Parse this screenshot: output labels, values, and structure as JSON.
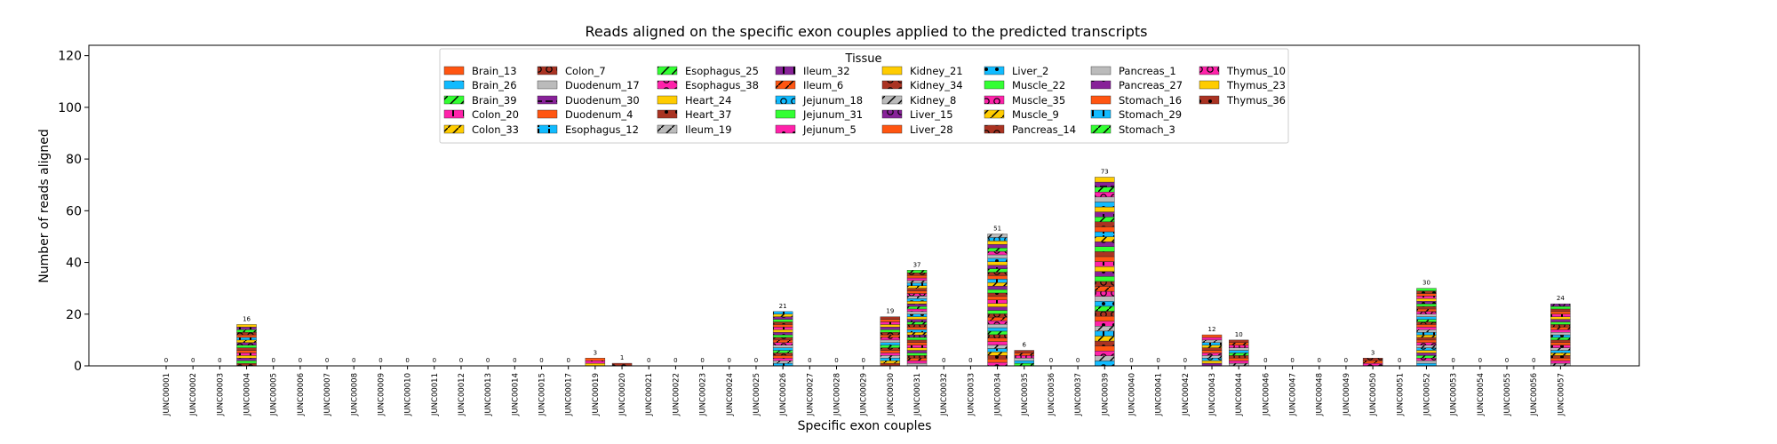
{
  "chart_data": {
    "type": "bar",
    "stacked": true,
    "title": "Reads aligned on the specific exon couples applied to the predicted transcripts",
    "xlabel": "Specific exon couples",
    "ylabel": "Number of reads aligned",
    "ylim": [
      0,
      124
    ],
    "yticks": [
      0,
      20,
      40,
      60,
      80,
      100,
      120
    ],
    "grid": false,
    "legend": {
      "title": "Tissue",
      "placement": "top-center",
      "columns": 8
    },
    "categories": [
      "JUNC00001",
      "JUNC00002",
      "JUNC00003",
      "JUNC00004",
      "JUNC00005",
      "JUNC00006",
      "JUNC00007",
      "JUNC00008",
      "JUNC00009",
      "JUNC00010",
      "JUNC00011",
      "JUNC00012",
      "JUNC00013",
      "JUNC00014",
      "JUNC00015",
      "JUNC00017",
      "JUNC00019",
      "JUNC00020",
      "JUNC00021",
      "JUNC00022",
      "JUNC00023",
      "JUNC00024",
      "JUNC00025",
      "JUNC00026",
      "JUNC00027",
      "JUNC00028",
      "JUNC00029",
      "JUNC00030",
      "JUNC00031",
      "JUNC00032",
      "JUNC00033",
      "JUNC00034",
      "JUNC00035",
      "JUNC00036",
      "JUNC00037",
      "JUNC00039",
      "JUNC00040",
      "JUNC00041",
      "JUNC00042",
      "JUNC00043",
      "JUNC00044",
      "JUNC00046",
      "JUNC00047",
      "JUNC00048",
      "JUNC00049",
      "JUNC00050",
      "JUNC00051",
      "JUNC00052",
      "JUNC00053",
      "JUNC00054",
      "JUNC00055",
      "JUNC00056",
      "JUNC00057"
    ],
    "totals": [
      0,
      0,
      0,
      16,
      0,
      0,
      0,
      0,
      0,
      0,
      0,
      0,
      0,
      0,
      0,
      0,
      3,
      1,
      0,
      0,
      0,
      0,
      0,
      21,
      0,
      0,
      0,
      19,
      37,
      0,
      0,
      51,
      6,
      0,
      0,
      73,
      0,
      0,
      0,
      12,
      10,
      0,
      0,
      0,
      0,
      3,
      0,
      30,
      0,
      0,
      0,
      0,
      24
    ],
    "series": [
      {
        "name": "Brain_13",
        "color": "#FF5511",
        "pattern": "none"
      },
      {
        "name": "Brain_26",
        "color": "#11BBFF",
        "pattern": "dot"
      },
      {
        "name": "Brain_39",
        "color": "#33FF33",
        "pattern": "slash"
      },
      {
        "name": "Colon_20",
        "color": "#FF22AA",
        "pattern": "bar"
      },
      {
        "name": "Colon_33",
        "color": "#FFCC00",
        "pattern": "slash"
      },
      {
        "name": "Colon_7",
        "color": "#AA3322",
        "pattern": "ring"
      },
      {
        "name": "Duodenum_17",
        "color": "#BBBBBB",
        "pattern": "none"
      },
      {
        "name": "Duodenum_30",
        "color": "#882299",
        "pattern": "dash"
      },
      {
        "name": "Duodenum_4",
        "color": "#FF5511",
        "pattern": "none"
      },
      {
        "name": "Esophagus_12",
        "color": "#11BBFF",
        "pattern": "bar"
      },
      {
        "name": "Esophagus_25",
        "color": "#33FF33",
        "pattern": "slash"
      },
      {
        "name": "Esophagus_38",
        "color": "#FF22AA",
        "pattern": "ring"
      },
      {
        "name": "Heart_24",
        "color": "#FFCC00",
        "pattern": "none"
      },
      {
        "name": "Heart_37",
        "color": "#AA3322",
        "pattern": "dot"
      },
      {
        "name": "Ileum_19",
        "color": "#BBBBBB",
        "pattern": "slash"
      },
      {
        "name": "Ileum_32",
        "color": "#882299",
        "pattern": "bar"
      },
      {
        "name": "Ileum_6",
        "color": "#FF5511",
        "pattern": "slash"
      },
      {
        "name": "Jejunum_18",
        "color": "#11BBFF",
        "pattern": "ring"
      },
      {
        "name": "Jejunum_31",
        "color": "#33FF33",
        "pattern": "none"
      },
      {
        "name": "Jejunum_5",
        "color": "#FF22AA",
        "pattern": "dot"
      },
      {
        "name": "Kidney_21",
        "color": "#FFCC00",
        "pattern": "none"
      },
      {
        "name": "Kidney_34",
        "color": "#AA3322",
        "pattern": "ring"
      },
      {
        "name": "Kidney_8",
        "color": "#BBBBBB",
        "pattern": "slash"
      },
      {
        "name": "Liver_15",
        "color": "#882299",
        "pattern": "ring"
      },
      {
        "name": "Liver_28",
        "color": "#FF5511",
        "pattern": "none"
      },
      {
        "name": "Liver_2",
        "color": "#11BBFF",
        "pattern": "dot"
      },
      {
        "name": "Muscle_22",
        "color": "#33FF33",
        "pattern": "none"
      },
      {
        "name": "Muscle_35",
        "color": "#FF22AA",
        "pattern": "ring"
      },
      {
        "name": "Muscle_9",
        "color": "#FFCC00",
        "pattern": "slash"
      },
      {
        "name": "Pancreas_14",
        "color": "#AA3322",
        "pattern": "ring"
      },
      {
        "name": "Pancreas_1",
        "color": "#BBBBBB",
        "pattern": "none"
      },
      {
        "name": "Pancreas_27",
        "color": "#882299",
        "pattern": "dot"
      },
      {
        "name": "Stomach_16",
        "color": "#FF5511",
        "pattern": "none"
      },
      {
        "name": "Stomach_29",
        "color": "#11BBFF",
        "pattern": "bar"
      },
      {
        "name": "Stomach_3",
        "color": "#33FF33",
        "pattern": "slash"
      },
      {
        "name": "Thymus_10",
        "color": "#FF22AA",
        "pattern": "ring"
      },
      {
        "name": "Thymus_23",
        "color": "#FFCC00",
        "pattern": "none"
      },
      {
        "name": "Thymus_36",
        "color": "#AA3322",
        "pattern": "dot"
      }
    ]
  }
}
